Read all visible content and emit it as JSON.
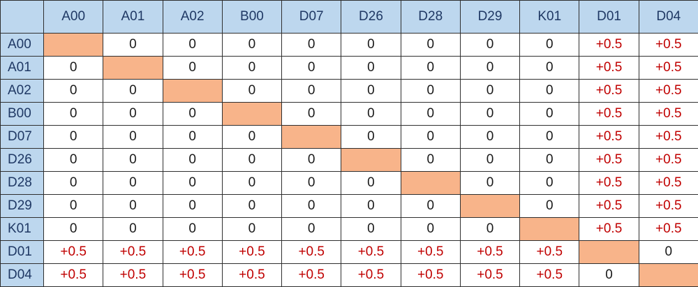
{
  "table": {
    "corner": "",
    "headers": [
      "A00",
      "A01",
      "A02",
      "B00",
      "D07",
      "D26",
      "D28",
      "D29",
      "K01",
      "D01",
      "D04"
    ],
    "rows": [
      {
        "label": "A00",
        "cells": [
          "",
          "0",
          "0",
          "0",
          "0",
          "0",
          "0",
          "0",
          "0",
          "+0.5",
          "+0.5"
        ]
      },
      {
        "label": "A01",
        "cells": [
          "0",
          "",
          "0",
          "0",
          "0",
          "0",
          "0",
          "0",
          "0",
          "+0.5",
          "+0.5"
        ]
      },
      {
        "label": "A02",
        "cells": [
          "0",
          "0",
          "",
          "0",
          "0",
          "0",
          "0",
          "0",
          "0",
          "+0.5",
          "+0.5"
        ]
      },
      {
        "label": "B00",
        "cells": [
          "0",
          "0",
          "0",
          "",
          "0",
          "0",
          "0",
          "0",
          "0",
          "+0.5",
          "+0.5"
        ]
      },
      {
        "label": "D07",
        "cells": [
          "0",
          "0",
          "0",
          "0",
          "",
          "0",
          "0",
          "0",
          "0",
          "+0.5",
          "+0.5"
        ]
      },
      {
        "label": "D26",
        "cells": [
          "0",
          "0",
          "0",
          "0",
          "0",
          "",
          "0",
          "0",
          "0",
          "+0.5",
          "+0.5"
        ]
      },
      {
        "label": "D28",
        "cells": [
          "0",
          "0",
          "0",
          "0",
          "0",
          "0",
          "",
          "0",
          "0",
          "+0.5",
          "+0.5"
        ]
      },
      {
        "label": "D29",
        "cells": [
          "0",
          "0",
          "0",
          "0",
          "0",
          "0",
          "0",
          "",
          "0",
          "+0.5",
          "+0.5"
        ]
      },
      {
        "label": "K01",
        "cells": [
          "0",
          "0",
          "0",
          "0",
          "0",
          "0",
          "0",
          "0",
          "",
          "+0.5",
          "+0.5"
        ]
      },
      {
        "label": "D01",
        "cells": [
          "+0.5",
          "+0.5",
          "+0.5",
          "+0.5",
          "+0.5",
          "+0.5",
          "+0.5",
          "+0.5",
          "+0.5",
          "",
          "0"
        ]
      },
      {
        "label": "D04",
        "cells": [
          "+0.5",
          "+0.5",
          "+0.5",
          "+0.5",
          "+0.5",
          "+0.5",
          "+0.5",
          "+0.5",
          "+0.5",
          "0",
          ""
        ]
      }
    ]
  },
  "colors": {
    "header_bg": "#bdd7ee",
    "diagonal_fill": "#f8b48a",
    "positive_text": "#c00000",
    "zero_text": "#1a1a1a",
    "border": "#2f2f2f"
  }
}
